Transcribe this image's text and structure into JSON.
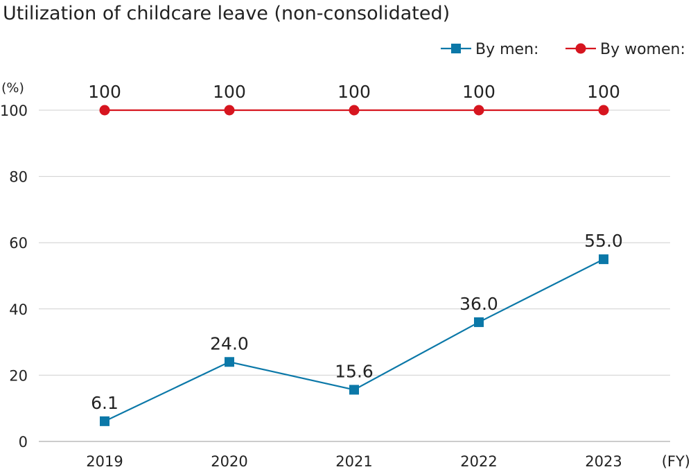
{
  "chart_data": {
    "type": "line",
    "title": "Utilization of childcare leave (non-consolidated)",
    "xlabel": "(FY)",
    "ylabel": "(%)",
    "categories": [
      "2019",
      "2020",
      "2021",
      "2022",
      "2023"
    ],
    "ylim": [
      0,
      100
    ],
    "yticks": [
      0,
      20,
      40,
      60,
      80,
      100
    ],
    "grid": true,
    "legend_position": "top-right",
    "series": [
      {
        "name": "By men:",
        "marker": "square",
        "color": "#0b78a8",
        "values": [
          6.1,
          24.0,
          15.6,
          36.0,
          55.0
        ],
        "labels": [
          "6.1",
          "24.0",
          "15.6",
          "36.0",
          "55.0"
        ]
      },
      {
        "name": "By women:",
        "marker": "circle",
        "color": "#d6151f",
        "values": [
          100,
          100,
          100,
          100,
          100
        ],
        "labels": [
          "100",
          "100",
          "100",
          "100",
          "100"
        ]
      }
    ]
  }
}
